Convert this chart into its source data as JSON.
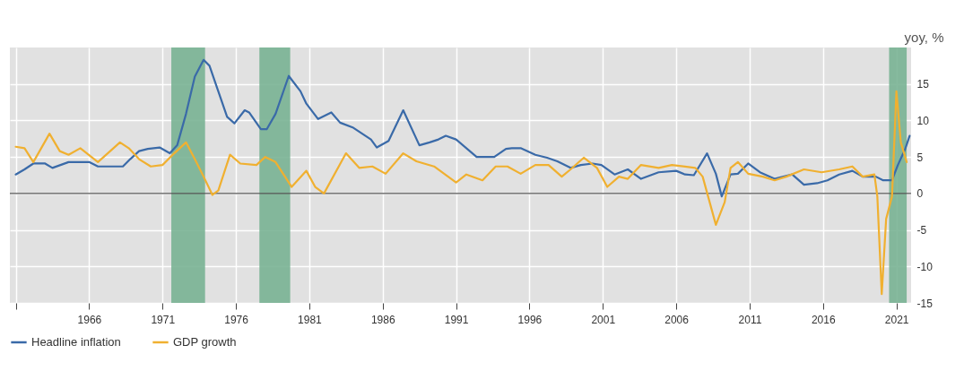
{
  "chart_data": {
    "type": "line",
    "ylabel": "yoy, %",
    "xlim": [
      1960.6,
      2022.0
    ],
    "ylim": [
      -15,
      20
    ],
    "xticks": [
      {
        "value": 1961,
        "label": null
      },
      1966,
      1971,
      1976,
      1981,
      1986,
      1991,
      1996,
      2001,
      2006,
      2011,
      2016,
      2021
    ],
    "yticks": [
      -15,
      -10,
      -5,
      0,
      5,
      10,
      15
    ],
    "grid": true,
    "legend": "bottom left",
    "bands": [
      {
        "axis": "x",
        "from": 1971.6,
        "to": 1973.9,
        "color": "#79b394"
      },
      {
        "axis": "x",
        "from": 1977.6,
        "to": 1979.7,
        "color": "#79b394"
      },
      {
        "axis": "x",
        "from": 2020.5,
        "to": 2021.7,
        "color": "#79b394"
      }
    ],
    "ref_lines": [
      {
        "axis": "y",
        "value": 0,
        "color": "#555555"
      }
    ],
    "series": [
      {
        "name": "Headline inflation",
        "color": "#3a6aa8",
        "x": [
          1961.0,
          1961.6,
          1962.2,
          1963.0,
          1963.5,
          1964.6,
          1966.0,
          1966.6,
          1967.6,
          1968.3,
          1968.8,
          1969.4,
          1970.0,
          1970.8,
          1971.5,
          1972.0,
          1972.6,
          1973.2,
          1973.8,
          1974.2,
          1974.8,
          1975.4,
          1975.9,
          1976.6,
          1976.9,
          1977.7,
          1978.1,
          1978.7,
          1979.6,
          1980.4,
          1980.8,
          1981.6,
          1982.5,
          1983.1,
          1984.0,
          1985.2,
          1985.6,
          1986.4,
          1987.4,
          1988.5,
          1989.2,
          1989.8,
          1990.3,
          1991.0,
          1992.4,
          1993.6,
          1994.4,
          1994.8,
          1995.4,
          1996.4,
          1997.2,
          1997.9,
          1998.8,
          1999.5,
          2000.3,
          2000.9,
          2001.8,
          2002.7,
          2003.6,
          2004.8,
          2006.0,
          2006.6,
          2007.2,
          2008.1,
          2008.7,
          2009.1,
          2009.7,
          2010.2,
          2010.9,
          2011.7,
          2012.7,
          2013.9,
          2014.7,
          2015.6,
          2016.3,
          2017.1,
          2018.0,
          2018.7,
          2019.6,
          2020.1,
          2020.7,
          2021.1,
          2021.6,
          2021.9
        ],
        "values": [
          2.6,
          3.3,
          4.1,
          4.1,
          3.5,
          4.3,
          4.3,
          3.7,
          3.7,
          3.7,
          4.7,
          5.8,
          6.1,
          6.3,
          5.5,
          6.6,
          10.9,
          16.0,
          18.3,
          17.5,
          14.0,
          10.5,
          9.6,
          11.4,
          11.1,
          8.8,
          8.8,
          10.9,
          16.1,
          14.0,
          12.3,
          10.2,
          11.1,
          9.7,
          9.0,
          7.4,
          6.3,
          7.2,
          11.4,
          6.6,
          7.0,
          7.4,
          7.9,
          7.4,
          5.0,
          5.0,
          6.1,
          6.2,
          6.2,
          5.3,
          4.9,
          4.4,
          3.5,
          3.9,
          4.1,
          3.9,
          2.6,
          3.3,
          2.0,
          2.9,
          3.1,
          2.6,
          2.5,
          5.5,
          2.7,
          -0.4,
          2.6,
          2.7,
          4.1,
          2.9,
          2.0,
          2.6,
          1.2,
          1.4,
          1.8,
          2.6,
          3.1,
          2.3,
          2.3,
          1.8,
          1.8,
          3.9,
          6.1,
          7.9
        ]
      },
      {
        "name": "GDP growth",
        "color": "#f0b030",
        "x": [
          1961.0,
          1961.6,
          1962.2,
          1963.3,
          1964.0,
          1964.6,
          1965.4,
          1966.6,
          1968.1,
          1968.7,
          1969.4,
          1970.2,
          1971.0,
          1971.8,
          1972.6,
          1973.2,
          1973.8,
          1974.4,
          1974.8,
          1975.6,
          1976.3,
          1977.4,
          1978.0,
          1978.7,
          1979.8,
          1980.8,
          1981.4,
          1982.0,
          1983.5,
          1984.4,
          1985.3,
          1986.2,
          1987.4,
          1988.3,
          1989.5,
          1991.0,
          1991.7,
          1992.8,
          1993.7,
          1994.5,
          1995.4,
          1996.4,
          1997.3,
          1998.2,
          1998.8,
          1999.7,
          2000.6,
          2001.3,
          2002.1,
          2002.7,
          2003.6,
          2004.8,
          2005.7,
          2007.3,
          2007.8,
          2008.7,
          2009.3,
          2009.7,
          2010.2,
          2010.9,
          2011.9,
          2012.7,
          2013.5,
          2014.7,
          2015.9,
          2017.1,
          2018.0,
          2018.7,
          2019.5,
          2019.7,
          2020.0,
          2020.3,
          2020.7,
          2021.0,
          2021.3,
          2021.7
        ],
        "values": [
          6.4,
          6.2,
          4.3,
          8.2,
          5.8,
          5.3,
          6.2,
          4.3,
          7.0,
          6.2,
          4.7,
          3.7,
          3.9,
          5.5,
          7.0,
          4.7,
          2.3,
          -0.2,
          0.4,
          5.3,
          4.1,
          3.9,
          5.0,
          4.3,
          0.9,
          3.1,
          0.9,
          0.0,
          5.5,
          3.5,
          3.7,
          2.7,
          5.5,
          4.4,
          3.7,
          1.5,
          2.6,
          1.8,
          3.7,
          3.7,
          2.7,
          3.9,
          3.9,
          2.3,
          3.3,
          4.9,
          3.5,
          0.9,
          2.3,
          2.0,
          3.9,
          3.5,
          3.9,
          3.5,
          2.3,
          -4.3,
          -1.2,
          3.5,
          4.3,
          2.7,
          2.3,
          1.8,
          2.3,
          3.3,
          2.9,
          3.3,
          3.7,
          2.3,
          2.6,
          -0.4,
          -13.8,
          -3.5,
          -0.4,
          14.0,
          7.0,
          4.3
        ]
      }
    ]
  }
}
